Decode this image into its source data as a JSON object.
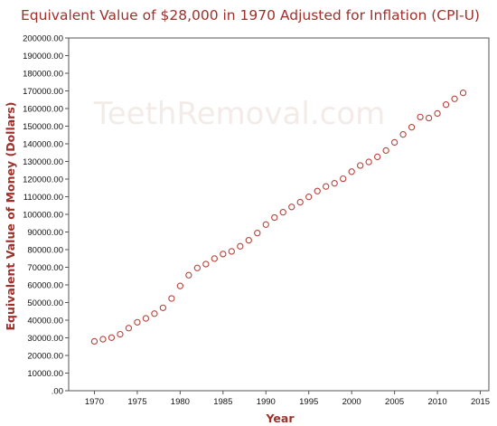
{
  "chart_data": {
    "type": "scatter",
    "title": "Equivalent Value of $28,000 in 1970 Adjusted for Inflation (CPI-U)",
    "xlabel": "Year",
    "ylabel": "Equivalent Value of Money (Dollars)",
    "watermark": "TeethRemoval.com",
    "xlim": [
      1967,
      2016
    ],
    "ylim": [
      0,
      200000
    ],
    "x_ticks": [
      1970,
      1975,
      1980,
      1985,
      1990,
      1995,
      2000,
      2005,
      2010,
      2015
    ],
    "y_ticks": [
      ".00",
      "10000.00",
      "20000.00",
      "30000.00",
      "40000.00",
      "50000.00",
      "60000.00",
      "70000.00",
      "80000.00",
      "90000.00",
      "100000.00",
      "110000.00",
      "120000.00",
      "130000.00",
      "140000.00",
      "150000.00",
      "160000.00",
      "170000.00",
      "180000.00",
      "190000.00",
      "200000.00"
    ],
    "grid": false,
    "marker_color": "#b5443c",
    "x": [
      1970,
      1971,
      1972,
      1973,
      1974,
      1975,
      1976,
      1977,
      1978,
      1979,
      1980,
      1981,
      1982,
      1983,
      1984,
      1985,
      1986,
      1987,
      1988,
      1989,
      1990,
      1991,
      1992,
      1993,
      1994,
      1995,
      1996,
      1997,
      1998,
      1999,
      2000,
      2001,
      2002,
      2003,
      2004,
      2005,
      2006,
      2007,
      2008,
      2009,
      2010,
      2011,
      2012,
      2013
    ],
    "y": [
      28000,
      29200,
      30100,
      32000,
      35500,
      38800,
      41000,
      43700,
      47000,
      52300,
      59400,
      65500,
      69600,
      71800,
      74900,
      77500,
      79000,
      81900,
      85300,
      89400,
      94200,
      98200,
      101200,
      104200,
      106900,
      109900,
      113200,
      115800,
      117600,
      120200,
      124200,
      127700,
      129700,
      132600,
      136200,
      140800,
      145300,
      149400,
      155200,
      154600,
      157200,
      162200,
      165500,
      168900
    ]
  }
}
